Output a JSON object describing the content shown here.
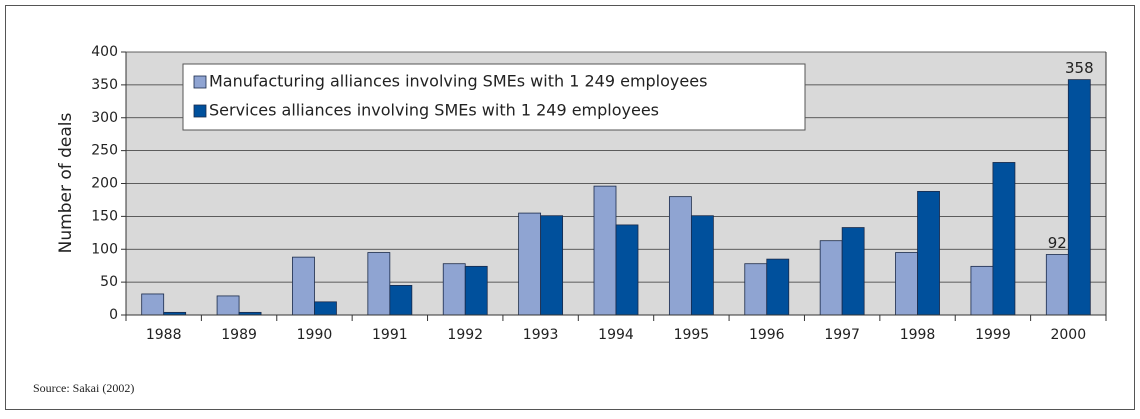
{
  "chart_data": {
    "type": "bar",
    "y_label": "Number of deals",
    "source": "Source: Sakai (2002)",
    "categories": [
      "1988",
      "1989",
      "1990",
      "1991",
      "1992",
      "1993",
      "1994",
      "1995",
      "1996",
      "1997",
      "1998",
      "1999",
      "2000"
    ],
    "series": [
      {
        "name": "Manufacturing alliances involving SMEs with 1 249 employees",
        "color": "#8fa4d2",
        "values": [
          32,
          29,
          88,
          95,
          78,
          155,
          196,
          180,
          78,
          113,
          95,
          74,
          92
        ],
        "value_labels": [
          null,
          null,
          null,
          null,
          null,
          null,
          null,
          null,
          null,
          null,
          null,
          null,
          "92"
        ]
      },
      {
        "name": "Services alliances involving SMEs with 1 249 employees",
        "color": "#00509c",
        "values": [
          4,
          4,
          20,
          45,
          74,
          151,
          137,
          151,
          85,
          133,
          188,
          232,
          358
        ],
        "value_labels": [
          null,
          null,
          null,
          null,
          null,
          null,
          null,
          null,
          null,
          null,
          null,
          null,
          "358"
        ]
      }
    ],
    "ylim": [
      0,
      400
    ],
    "yticks": [
      0,
      50,
      100,
      150,
      200,
      250,
      300,
      350,
      400
    ],
    "grid": true,
    "legend": "top-left"
  }
}
